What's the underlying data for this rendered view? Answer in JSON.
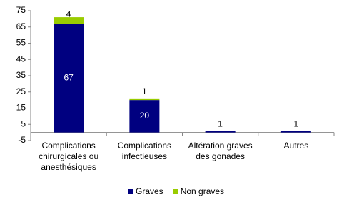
{
  "chart_data": {
    "type": "stacked-bar",
    "categories": [
      [
        "Complications",
        "chirurgicales ou",
        "anesthésiques"
      ],
      [
        "Complications",
        "infectieuses"
      ],
      [
        "Altération graves",
        "des gonades"
      ],
      [
        "Autres"
      ]
    ],
    "series": [
      {
        "name": "Graves",
        "color": "#000080",
        "values": [
          67,
          20,
          1,
          1
        ]
      },
      {
        "name": "Non graves",
        "color": "#99cc00",
        "values": [
          4,
          1,
          null,
          null
        ]
      }
    ],
    "ylim": [
      -5,
      75
    ],
    "yticks": [
      -5,
      5,
      15,
      25,
      35,
      45,
      55,
      65,
      75
    ],
    "grid": false,
    "legend": "bottom"
  }
}
